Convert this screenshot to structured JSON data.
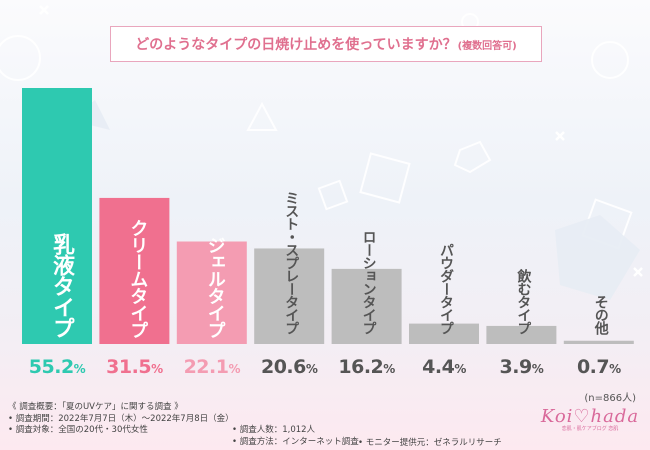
{
  "title": {
    "main": "どのようなタイプの日焼け止めを使っていますか？",
    "sub": "(複数回答可)"
  },
  "chart_data": {
    "type": "bar",
    "categories": [
      "乳液タイプ",
      "クリームタイプ",
      "ジェルタイプ",
      "ミスト・スプレータイプ",
      "ローションタイプ",
      "パウダータイプ",
      "飲むタイプ",
      "その他"
    ],
    "values": [
      55.2,
      31.5,
      22.1,
      20.6,
      16.2,
      4.4,
      3.9,
      0.7
    ],
    "value_labels": [
      {
        "num": "55.2",
        "unit": "%"
      },
      {
        "num": "31.5",
        "unit": "%"
      },
      {
        "num": "22.1",
        "unit": "%"
      },
      {
        "num": "20.6",
        "unit": "%"
      },
      {
        "num": "16.2",
        "unit": "%"
      },
      {
        "num": "4.4",
        "unit": "%"
      },
      {
        "num": "3.9",
        "unit": "%"
      },
      {
        "num": "0.7",
        "unit": "%"
      }
    ],
    "ylim": [
      0,
      55.2
    ],
    "colors": [
      "#2ec9b0",
      "#f0708f",
      "#f49cb2",
      "#bdbdbd",
      "#bdbdbd",
      "#bdbdbd",
      "#bdbdbd",
      "#bdbdbd"
    ],
    "label_colors": [
      "#2ec9b0",
      "#f0708f",
      "#f49cb2",
      "#555555",
      "#555555",
      "#555555",
      "#555555",
      "#555555"
    ],
    "inbar_text_colors": [
      "#ffffff",
      "#ffffff",
      "#ffffff",
      "#555555",
      "#555555",
      "#555555",
      "#555555",
      "#555555"
    ],
    "grid": false
  },
  "n_note": "(n=866人)",
  "survey": {
    "line1": "《 調査概要：「夏のUVケア」に関する調査 》",
    "line2": "• 調査期間：2022年7月7日（木）～2022年7月8日（金）",
    "line3": "• 調査対象：全国の20代・30代女性",
    "count": "• 調査人数：1,012人",
    "method": "• 調査方法：インターネット調査",
    "monitor": "• モニター提供元：ゼネラルリサーチ"
  },
  "logo": {
    "main": "Koi♡hada",
    "sub": "恋肌・肌ケアブログ 恋肌"
  }
}
